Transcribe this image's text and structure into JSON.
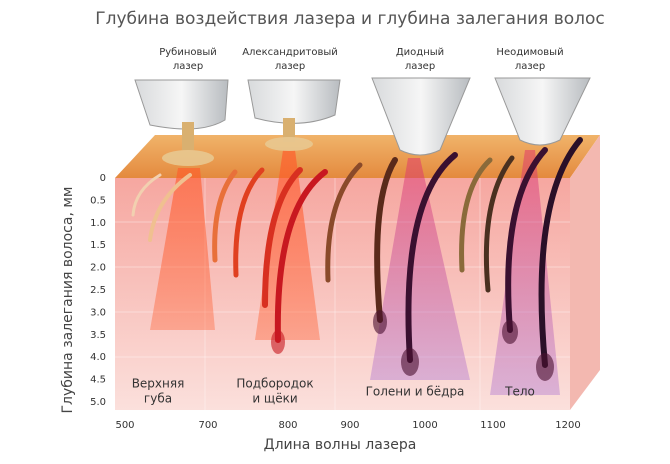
{
  "header": {
    "title": "Глубина воздействия лазера и  глубина залегания волос"
  },
  "lasers": [
    {
      "line1": "Рубиновый",
      "line2": "лазер"
    },
    {
      "line1": "Александритовый",
      "line2": "лазер"
    },
    {
      "line1": "Диодный",
      "line2": "лазер"
    },
    {
      "line1": "Неодимовый",
      "line2": "лазер"
    }
  ],
  "y_axis": {
    "label": "Глубина залегания волоса, мм",
    "ticks": [
      "0",
      "0.5",
      "1.0",
      "1.5",
      "2.0",
      "2.5",
      "3.0",
      "3.5",
      "4.0",
      "4.5",
      "5.0"
    ]
  },
  "x_axis": {
    "label": "Длина волны лазера",
    "ticks": [
      "500",
      "700",
      "800",
      "900",
      "1000",
      "1100",
      "1200"
    ]
  },
  "regions": [
    {
      "line1": "Верхняя",
      "line2": "губа"
    },
    {
      "line1": "Подбородок",
      "line2": "и щёки"
    },
    {
      "line1": "Голени и бёдра"
    },
    {
      "line1": "Тело"
    }
  ]
}
